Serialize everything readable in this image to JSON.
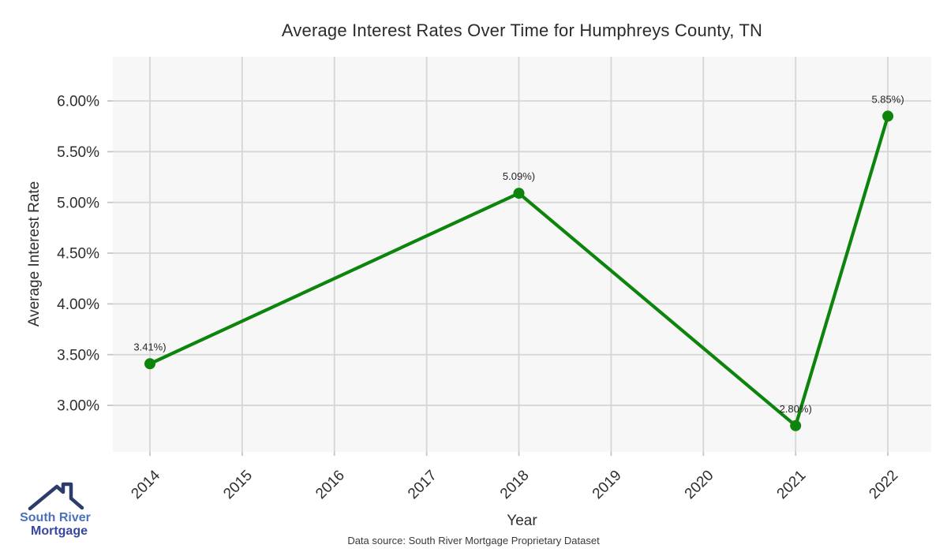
{
  "title": "Average Interest Rates Over Time for Humphreys County, TN",
  "axes": {
    "xlabel": "Year",
    "ylabel": "Average Interest Rate"
  },
  "footer": {
    "source": "Data source: South River Mortgage Proprietary Dataset"
  },
  "logo": {
    "line1": "South River",
    "line2": "Mortgage",
    "roof_color": "#2d3c6b"
  },
  "chart_data": {
    "type": "line",
    "title": "Average Interest Rates Over Time for Humphreys County, TN",
    "xlabel": "Year",
    "ylabel": "Average Interest Rate",
    "series": [
      {
        "name": "Average Interest Rate",
        "x": [
          2014,
          2018,
          2021,
          2022
        ],
        "y": [
          3.41,
          5.09,
          2.8,
          5.85
        ],
        "point_labels": [
          "3.41%)",
          "5.09%)",
          "2.80%)",
          "5.85%)"
        ]
      }
    ],
    "xticks": {
      "values": [
        2014,
        2015,
        2016,
        2017,
        2018,
        2019,
        2020,
        2021,
        2022
      ],
      "labels": [
        "2014",
        "2015",
        "2016",
        "2017",
        "2018",
        "2019",
        "2020",
        "2021",
        "2022"
      ]
    },
    "yticks": {
      "values": [
        3.0,
        3.5,
        4.0,
        4.5,
        5.0,
        5.5,
        6.0
      ],
      "labels": [
        "3.00%",
        "3.50%",
        "4.00%",
        "4.50%",
        "5.00%",
        "5.50%",
        "6.00%"
      ]
    },
    "xlim": [
      2013.598,
      2022.47
    ],
    "ylim": [
      2.542,
      6.435
    ],
    "grid": true,
    "legend": "none",
    "colors": {
      "line": "#0d850d",
      "marker": "#0d850d",
      "plot_bg": "#f7f7f7",
      "grid": "#d6d6d6",
      "tick": "#c6c6c6",
      "text": "#2e2e2e"
    }
  }
}
